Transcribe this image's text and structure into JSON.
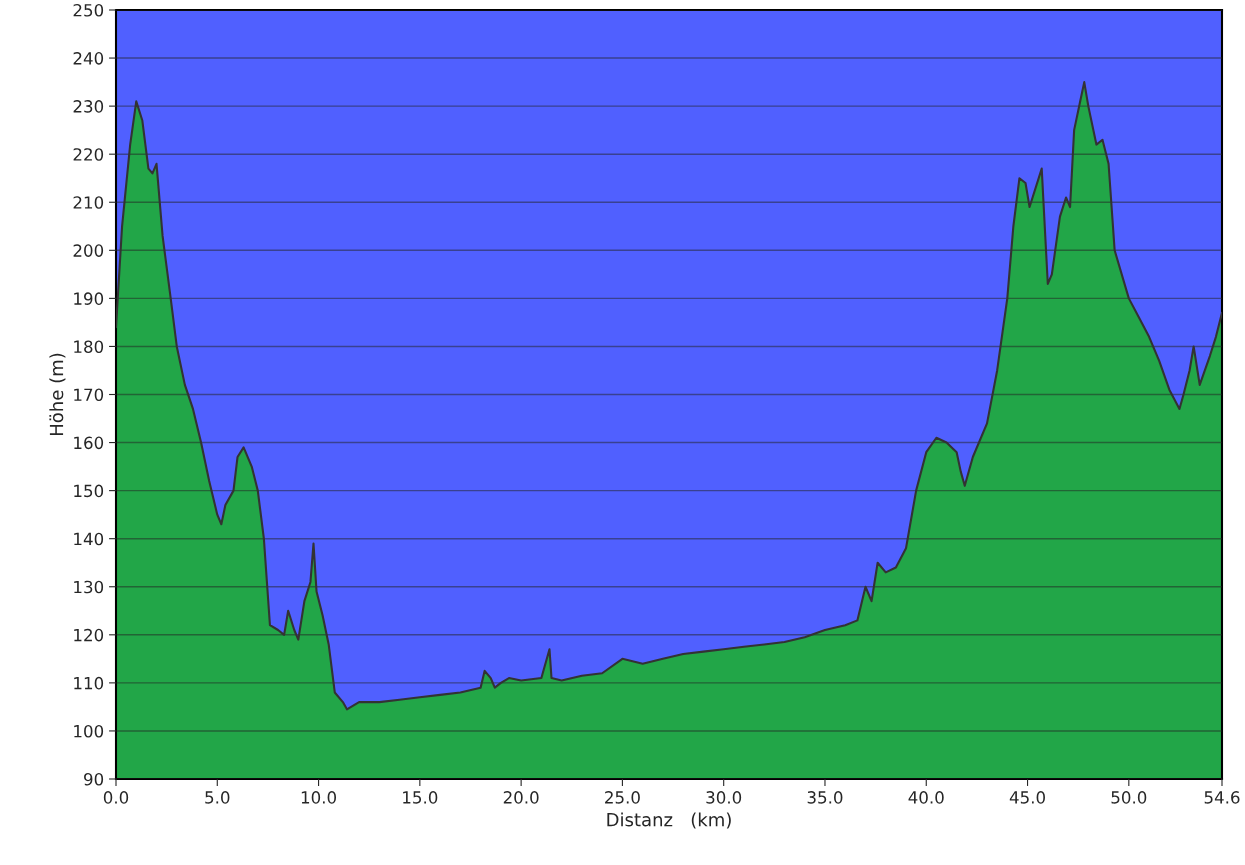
{
  "chart_data": {
    "type": "area",
    "xlabel": "Distanz   (km)",
    "ylabel": "Höhe (m)",
    "x": [
      0,
      0.3,
      0.7,
      1.0,
      1.3,
      1.6,
      1.8,
      2.0,
      2.3,
      2.7,
      3.0,
      3.4,
      3.8,
      4.2,
      4.6,
      5.0,
      5.2,
      5.4,
      5.8,
      6.0,
      6.3,
      6.7,
      7.0,
      7.3,
      7.6,
      8.0,
      8.3,
      8.5,
      8.8,
      9.0,
      9.3,
      9.6,
      9.75,
      9.9,
      10.2,
      10.5,
      10.8,
      11.2,
      11.4,
      12,
      13,
      14,
      15,
      16,
      17,
      18,
      18.2,
      18.5,
      18.7,
      19,
      19.4,
      20,
      21,
      21.4,
      21.5,
      22,
      23,
      24,
      25,
      26,
      27,
      28,
      29,
      30,
      31,
      32,
      33,
      34,
      35,
      36,
      36.6,
      37,
      37.3,
      37.6,
      38,
      38.5,
      39,
      39.5,
      40,
      40.5,
      41,
      41.5,
      41.7,
      41.9,
      42.3,
      43,
      43.5,
      44,
      44.3,
      44.6,
      44.9,
      45.1,
      45.7,
      46,
      46.2,
      46.6,
      46.9,
      47.1,
      47.3,
      47.6,
      47.8,
      48,
      48.4,
      48.7,
      49,
      49.3,
      50,
      50.5,
      51,
      51.5,
      52,
      52.5,
      52.7,
      53,
      53.2,
      53.5,
      54,
      54.3,
      54.6
    ],
    "series": [
      {
        "color": "#22a648",
        "values": [
          184,
          205,
          222,
          231,
          227,
          217,
          216,
          218,
          203,
          190,
          180,
          172,
          167,
          160,
          152,
          145,
          143,
          147,
          150,
          157,
          159,
          155,
          150,
          140,
          122,
          121,
          120,
          125,
          121,
          119,
          127,
          131,
          139,
          129,
          124,
          118,
          108,
          106,
          104.5,
          106,
          106,
          106.5,
          107,
          107.5,
          108,
          109,
          112.5,
          111,
          109,
          110,
          111,
          110.5,
          111,
          117,
          111,
          110.5,
          111.5,
          112,
          115,
          114,
          115,
          116,
          116.5,
          117,
          117.5,
          118,
          118.5,
          119.5,
          121,
          122,
          123,
          130,
          127,
          135,
          133,
          134,
          138,
          150,
          158,
          161,
          160,
          158,
          154,
          151,
          157,
          164,
          175,
          190,
          205,
          215,
          214,
          209,
          217,
          193,
          195,
          207,
          211,
          209,
          225,
          231,
          235,
          230,
          222,
          223,
          218,
          200,
          190,
          186,
          182,
          177,
          171,
          167,
          170,
          175,
          180,
          172,
          178,
          182,
          187
        ]
      }
    ],
    "xlim": [
      0,
      54.6
    ],
    "ylim": [
      90,
      250
    ],
    "xticks": [
      {
        "value": 0,
        "label": "0.0"
      },
      {
        "value": 5,
        "label": "5.0"
      },
      {
        "value": 10,
        "label": "10.0"
      },
      {
        "value": 15,
        "label": "15.0"
      },
      {
        "value": 20,
        "label": "20.0"
      },
      {
        "value": 25,
        "label": "25.0"
      },
      {
        "value": 30,
        "label": "30.0"
      },
      {
        "value": 35,
        "label": "35.0"
      },
      {
        "value": 40,
        "label": "40.0"
      },
      {
        "value": 45,
        "label": "45.0"
      },
      {
        "value": 50,
        "label": "50.0"
      },
      54.6
    ],
    "yticks": [
      90,
      100,
      110,
      120,
      130,
      140,
      150,
      160,
      170,
      180,
      190,
      200,
      210,
      220,
      230,
      240,
      250
    ],
    "grid": "y"
  }
}
